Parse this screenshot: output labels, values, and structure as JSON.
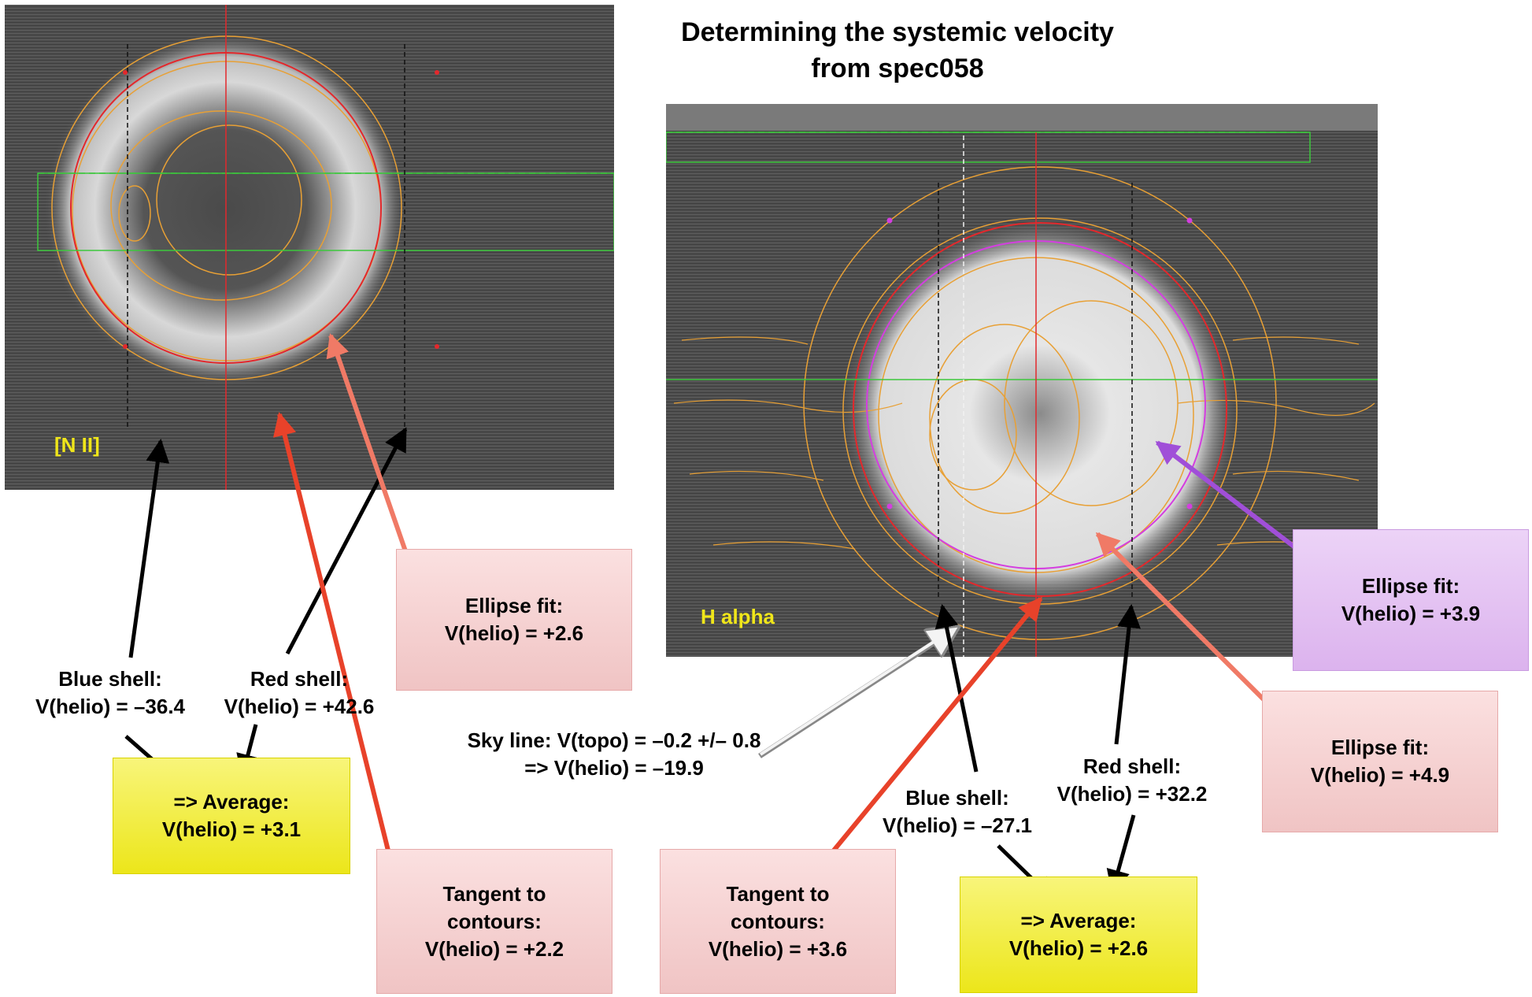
{
  "title": {
    "line1": "Determining the systemic velocity",
    "line2": "from spec058"
  },
  "panels": {
    "nii": {
      "label": "[N II]"
    },
    "halpha": {
      "label": "H alpha"
    }
  },
  "nii_annotations": {
    "blue_shell": {
      "line1": "Blue shell:",
      "line2": "V(helio) = –36.4"
    },
    "red_shell": {
      "line1": "Red shell:",
      "line2": "V(helio) = +42.6"
    },
    "ellipse_fit": {
      "line1": "Ellipse fit:",
      "line2": "V(helio) = +2.6"
    },
    "average": {
      "line1": "=> Average:",
      "line2": "V(helio) = +3.1"
    },
    "tangent": {
      "line1": "Tangent to",
      "line2": "contours:",
      "line3": "V(helio) = +2.2"
    }
  },
  "halpha_annotations": {
    "sky_line": {
      "line1": "Sky line: V(topo) = –0.2 +/– 0.8",
      "line2": "=> V(helio) = –19.9"
    },
    "blue_shell": {
      "line1": "Blue shell:",
      "line2": "V(helio) = –27.1"
    },
    "red_shell": {
      "line1": "Red shell:",
      "line2": "V(helio) = +32.2"
    },
    "ellipse_fit_red": {
      "line1": "Ellipse fit:",
      "line2": "V(helio) = +4.9"
    },
    "ellipse_fit_magenta": {
      "line1": "Ellipse fit:",
      "line2": "V(helio) = +3.9"
    },
    "average": {
      "line1": "=> Average:",
      "line2": "V(helio) = +2.6"
    },
    "tangent": {
      "line1": "Tangent to",
      "line2": "contours:",
      "line3": "V(helio) = +3.6"
    }
  },
  "colors": {
    "panel_bg": "#4f4f4f",
    "label_yellow": "#f0e61a",
    "contour_orange": "#e8a035",
    "fit_red": "#e3282c",
    "fit_magenta": "#d43ee0",
    "slit_green": "#3cc83c",
    "arrow_black": "#000000",
    "arrow_red": "#e8422a",
    "arrow_salmon": "#f07a66",
    "arrow_violet": "#a04fd8"
  }
}
